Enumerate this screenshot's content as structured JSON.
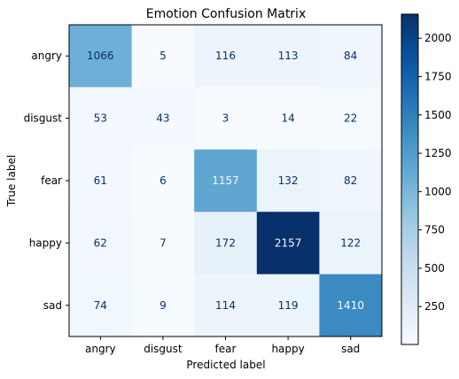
{
  "chart_data": {
    "type": "heatmap",
    "title": "Emotion Confusion Matrix",
    "xlabel": "Predicted label",
    "ylabel": "True label",
    "x_categories": [
      "angry",
      "disgust",
      "fear",
      "happy",
      "sad"
    ],
    "y_categories": [
      "angry",
      "disgust",
      "fear",
      "happy",
      "sad"
    ],
    "values": [
      [
        1066,
        5,
        116,
        113,
        84
      ],
      [
        53,
        43,
        3,
        14,
        22
      ],
      [
        61,
        6,
        1157,
        132,
        82
      ],
      [
        62,
        7,
        172,
        2157,
        122
      ],
      [
        74,
        9,
        114,
        119,
        1410
      ]
    ],
    "colormap": "Blues",
    "color_range": [
      3,
      2157
    ],
    "colorbar_ticks": [
      250,
      500,
      750,
      1000,
      1250,
      1500,
      1750,
      2000
    ],
    "colorbar_tick_labels": [
      "250",
      "500",
      "750",
      "1000",
      "1250",
      "1500",
      "1750",
      "2000"
    ],
    "colors": {
      "low": "#f7fbff",
      "high": "#08306b",
      "text_dark": "#08306b",
      "text_light": "#f7fbff"
    }
  }
}
